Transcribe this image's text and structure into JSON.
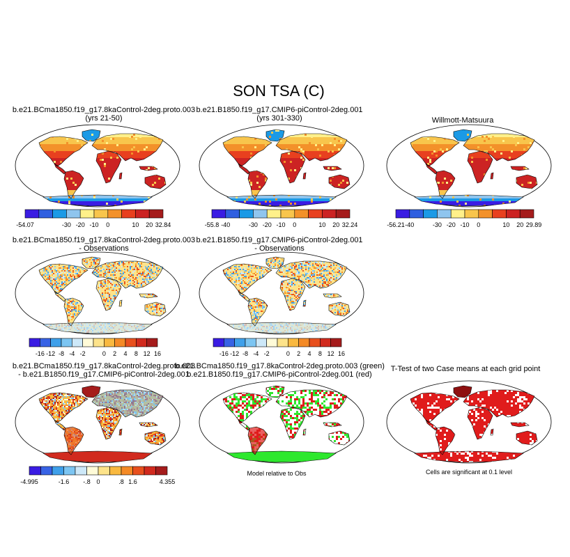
{
  "title": "SON TSA (C)",
  "colors": {
    "abs_scale": [
      "#3a1ce3",
      "#2f5fe0",
      "#1b9ae6",
      "#8fc5ee",
      "#fff08a",
      "#f8c54c",
      "#f3912a",
      "#e8401f",
      "#cc2323",
      "#a51c1c"
    ],
    "diff_scale": [
      "#3a1ce3",
      "#3863e5",
      "#3fa0ea",
      "#7cc5f2",
      "#cde8f8",
      "#fffbd8",
      "#fde38a",
      "#f9b940",
      "#f48a26",
      "#e8501e",
      "#d12a1e",
      "#a51c1c"
    ],
    "land_warm": "#cc2e2e",
    "ocean": "#ffffff",
    "sig_green": "#2ee82e",
    "sig_red": "#e01c1c"
  },
  "panels": [
    {
      "id": "case1",
      "title_lines": [
        "b.e21.BCma1850.f19_g17.8kaControl-2deg.proto.003",
        "(yrs 21-50)"
      ],
      "colorbar": [
        "-54.07",
        "",
        "-30",
        "-20",
        "-10",
        "0",
        "10",
        "20",
        "32.84"
      ],
      "scale": "abs"
    },
    {
      "id": "case2",
      "title_lines": [
        "b.e21.B1850.f19_g17.CMIP6-piControl-2deg.001",
        "(yrs 301-330)"
      ],
      "colorbar": [
        "-55.8",
        "-40",
        "-30",
        "-20",
        "-10",
        "0",
        "10",
        "20",
        "32.24"
      ],
      "scale": "abs"
    },
    {
      "id": "obs",
      "title_lines": [
        "Willmott-Matsuura"
      ],
      "colorbar": [
        "-56.21",
        "-40",
        "-30",
        "-20",
        "-10",
        "0",
        "10",
        "20",
        "29.89"
      ],
      "scale": "abs"
    },
    {
      "id": "case1-obs",
      "title_lines": [
        "b.e21.BCma1850.f19_g17.8kaControl-2deg.proto.003",
        "- Observations"
      ],
      "colorbar": [
        "",
        "-16",
        "-12",
        "-8",
        "-4",
        "-2",
        "0",
        "2",
        "4",
        "8",
        "12",
        "16"
      ],
      "scale": "diff"
    },
    {
      "id": "case2-obs",
      "title_lines": [
        "b.e21.B1850.f19_g17.CMIP6-piControl-2deg.001",
        "- Observations"
      ],
      "colorbar": [
        "",
        "-16",
        "-12",
        "-8",
        "-4",
        "-2",
        "0",
        "2",
        "4",
        "8",
        "12",
        "16"
      ],
      "scale": "diff"
    },
    {
      "id": "case1-case2",
      "title_lines": [
        "b.e21.BCma1850.f19_g17.8kaControl-2deg.proto.003",
        "- b.e21.B1850.f19_g17.CMIP6-piControl-2deg.001"
      ],
      "colorbar": [
        "-4.995",
        "",
        "-1.6",
        "-.8",
        "0",
        ".8",
        "1.6",
        "",
        "4.355"
      ],
      "scale": "diff"
    },
    {
      "id": "model-rel-obs",
      "title_lines": [
        "b.e21.BCma1850.f19_g17.8kaControl-2deg.proto.003 (green)",
        "b.e21.B1850.f19_g17.CMIP6-piControl-2deg.001 (red)"
      ],
      "caption": "Model relative to Obs"
    },
    {
      "id": "ttest",
      "title_lines": [
        "T-Test of two Case means at each grid point"
      ],
      "caption": "Cells are significant at 0.1 level"
    }
  ]
}
